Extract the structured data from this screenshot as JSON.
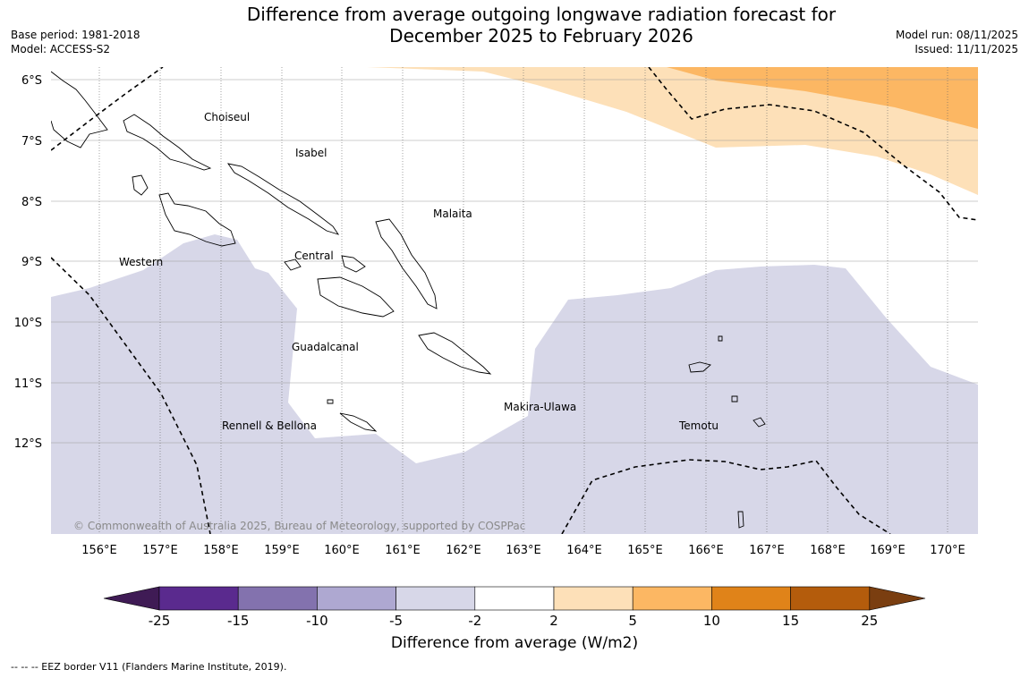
{
  "title_line1": "Difference from average outgoing longwave radiation forecast for",
  "title_line2": "December 2025 to February 2026",
  "base_period": "Base period: 1981-2018",
  "model": "Model: ACCESS-S2",
  "model_run": "Model run: 08/11/2025",
  "issued": "Issued: 11/11/2025",
  "copyright": "© Commonwealth of Australia 2025, Bureau of Meteorology, supported by COSPPac",
  "colorbar_title": "Difference from average (W/m2)",
  "eez_note": "--  --  -- EEZ border V11 (Flanders Marine Institute, 2019).",
  "chart_data": {
    "type": "heatmap",
    "lat_labels": [
      "6°S",
      "7°S",
      "8°S",
      "9°S",
      "10°S",
      "11°S",
      "12°S"
    ],
    "lon_labels": [
      "156°E",
      "157°E",
      "158°E",
      "159°E",
      "160°E",
      "161°E",
      "162°E",
      "163°E",
      "164°E",
      "165°E",
      "166°E",
      "167°E",
      "168°E",
      "169°E",
      "170°E"
    ],
    "lon_range": [
      155.3,
      170.5
    ],
    "lat_range": [
      -5.8,
      -13.5
    ],
    "place_labels": [
      "Choiseul",
      "Isabel",
      "Malaita",
      "Western",
      "Central",
      "Guadalcanal",
      "Makira-Ulawa",
      "Rennell & Bellona",
      "Temotu"
    ],
    "colorbar_ticks": [
      "-25",
      "-15",
      "-10",
      "-5",
      "-2",
      "2",
      "5",
      "10",
      "15",
      "25"
    ],
    "colorbar_colors": [
      "#3f1b55",
      "#5a2a8e",
      "#8372ae",
      "#aea8d1",
      "#d7d7e8",
      "#ffffff",
      "#fde0b8",
      "#fcb763",
      "#e08319",
      "#b45c0c",
      "#7a3e10"
    ],
    "legend_ranges": [
      "-25 to -15",
      "-15 to -10",
      "-10 to -5",
      "-5 to -2",
      "-2 to 2",
      "2 to 5",
      "5 to 10",
      "10 to 15",
      "15 to 25"
    ],
    "gridline_color": "#999999",
    "land_outline_color": "#000000"
  }
}
